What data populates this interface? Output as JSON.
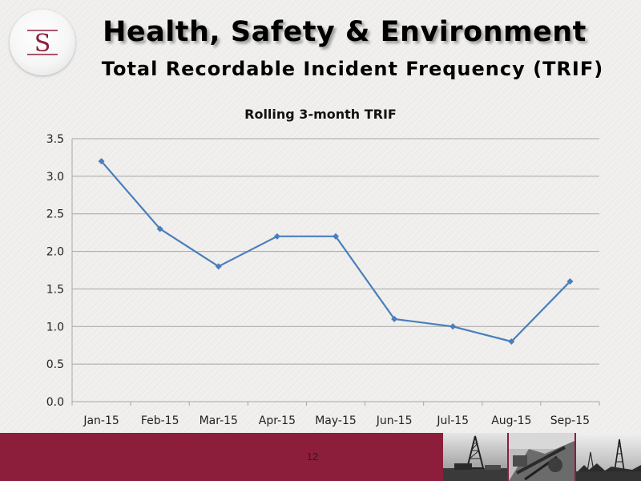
{
  "header": {
    "title": "Health, Safety & Environment",
    "subtitle": "Total Recordable Incident Frequency (TRIF)",
    "logo_letter": "S"
  },
  "footer": {
    "page_number": "12",
    "photos": [
      "drilling-rig-photo",
      "rig-equipment-photo",
      "oilfield-derricks-photo"
    ]
  },
  "colors": {
    "footer_band": "#8c1e3c",
    "series_line": "#4a7ebb",
    "gridline": "#a6a6a6",
    "logo_letter": "#8c1e3c"
  },
  "chart_data": {
    "type": "line",
    "title": "Rolling 3-month TRIF",
    "xlabel": "",
    "ylabel": "",
    "categories": [
      "Jan-15",
      "Feb-15",
      "Mar-15",
      "Apr-15",
      "May-15",
      "Jun-15",
      "Jul-15",
      "Aug-15",
      "Sep-15"
    ],
    "series": [
      {
        "values": [
          3.2,
          2.3,
          1.8,
          2.2,
          2.2,
          1.1,
          1.0,
          0.8,
          1.6
        ]
      }
    ],
    "ylim": [
      0,
      3.5
    ],
    "yticks": [
      "0.0",
      "0.5",
      "1.0",
      "1.5",
      "2.0",
      "2.5",
      "3.0",
      "3.5"
    ],
    "grid": true,
    "legend": "none",
    "marker": "diamond"
  }
}
